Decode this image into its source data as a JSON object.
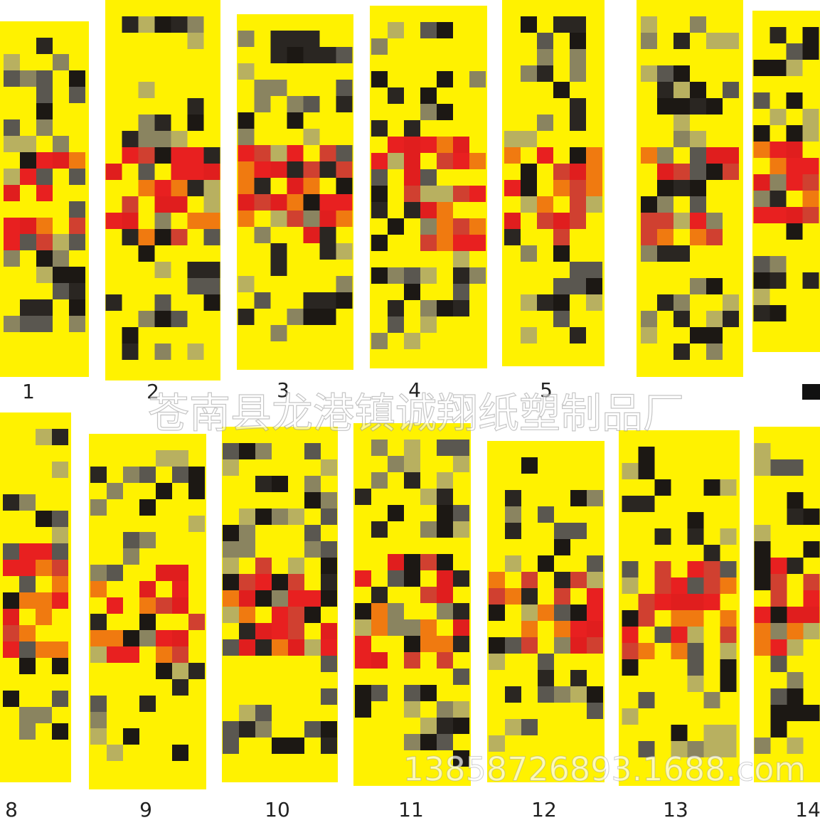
{
  "labels": [
    "1",
    "2",
    "3",
    "4",
    "5",
    "8",
    "9",
    "10",
    "11",
    "12",
    "13",
    "14"
  ],
  "watermark": {
    "company": "苍南县龙港镇诚翔纸塑制品厂",
    "site": "13858726893.1688.com"
  }
}
